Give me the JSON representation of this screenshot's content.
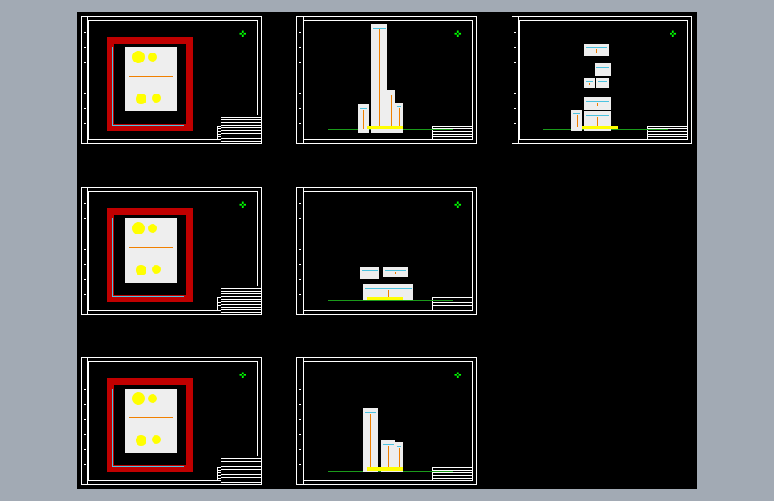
{
  "viewer": {
    "background": "#a2aab4",
    "canvas_color": "#000000"
  },
  "sheets": [
    {
      "id": "plan-1",
      "kind": "site-plan",
      "row": 1,
      "col": 1
    },
    {
      "id": "elevation-1",
      "kind": "elevation-tower",
      "row": 1,
      "col": 2
    },
    {
      "id": "elevation-3",
      "kind": "elevation-stacked",
      "row": 1,
      "col": 3
    },
    {
      "id": "plan-2",
      "kind": "site-plan",
      "row": 2,
      "col": 1
    },
    {
      "id": "elevation-2",
      "kind": "elevation-low",
      "row": 2,
      "col": 2
    },
    {
      "id": "plan-3",
      "kind": "site-plan",
      "row": 3,
      "col": 1
    },
    {
      "id": "elevation-4",
      "kind": "elevation-mid",
      "row": 3,
      "col": 2
    }
  ],
  "colors": {
    "plan_border": "#c00000",
    "north_arrow": "#00ff00",
    "ground_line": "#1a9a1a",
    "pipe": "#4cc3e0",
    "equipment": "#ffff00"
  },
  "icons": {
    "north_arrow": "north-arrow-icon"
  }
}
